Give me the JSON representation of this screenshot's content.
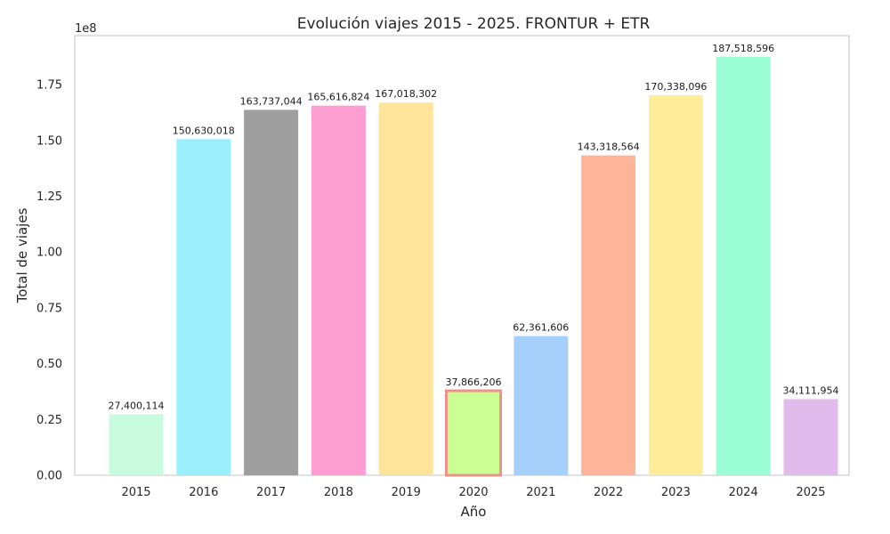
{
  "chart_data": {
    "type": "bar",
    "title": "Evolución viajes 2015 - 2025. FRONTUR + ETR",
    "xlabel": "Año",
    "ylabel": "Total de viajes",
    "y_offset_label": "1e8",
    "ylim": [
      0,
      197000000
    ],
    "ytick_values": [
      0,
      25000000,
      50000000,
      75000000,
      100000000,
      125000000,
      150000000,
      175000000
    ],
    "ytick_labels": [
      "0.00",
      "0.25",
      "0.50",
      "0.75",
      "1.00",
      "1.25",
      "1.50",
      "1.75"
    ],
    "categories": [
      "2015",
      "2016",
      "2017",
      "2018",
      "2019",
      "2020",
      "2021",
      "2022",
      "2023",
      "2024",
      "2025"
    ],
    "values": [
      27400114,
      150630018,
      163737044,
      165616824,
      167018302,
      37866206,
      62361606,
      143318564,
      170338096,
      187518596,
      34111954
    ],
    "value_labels": [
      "27,400,114",
      "150,630,018",
      "163,737,044",
      "165,616,824",
      "167,018,302",
      "37,866,206",
      "62,361,606",
      "143,318,564",
      "170,338,096",
      "187,518,596",
      "34,111,954"
    ],
    "colors": [
      "#c8fadd",
      "#9aeffc",
      "#9e9e9e",
      "#fe9dd1",
      "#fee49b",
      "#cbfe93",
      "#a5d0fc",
      "#feb499",
      "#feec98",
      "#9bfdd5",
      "#e1bbeb"
    ],
    "highlight_index": 5,
    "highlight_edge_color": "#f0908a",
    "grid": false,
    "legend": "none"
  }
}
